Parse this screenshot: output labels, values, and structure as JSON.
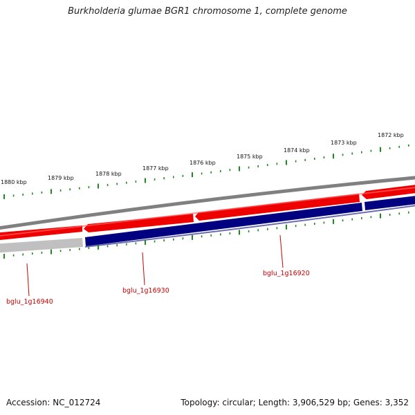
{
  "title": "Burkholderia glumae BGR1 chromosome 1, complete genome",
  "scale": {
    "unit": "kbp",
    "labels": [
      "1880 kbp",
      "1879 kbp",
      "1878 kbp",
      "1877 kbp",
      "1876 kbp",
      "1875 kbp",
      "1874 kbp",
      "1873 kbp",
      "1872 kbp"
    ]
  },
  "genes": [
    {
      "name": "bglu_1g16940"
    },
    {
      "name": "bglu_1g16930"
    },
    {
      "name": "bglu_1g16920"
    }
  ],
  "footer": {
    "accession": "Accession: NC_012724",
    "summary": "Topology: circular; Length: 3,906,529 bp; Genes: 3,352"
  },
  "colors": {
    "forward_strand": "#ee0000",
    "reverse_strand": "#000080",
    "backbone": "#808080",
    "ticks": "#1a8a1a",
    "gene_label": "#cc0000"
  }
}
